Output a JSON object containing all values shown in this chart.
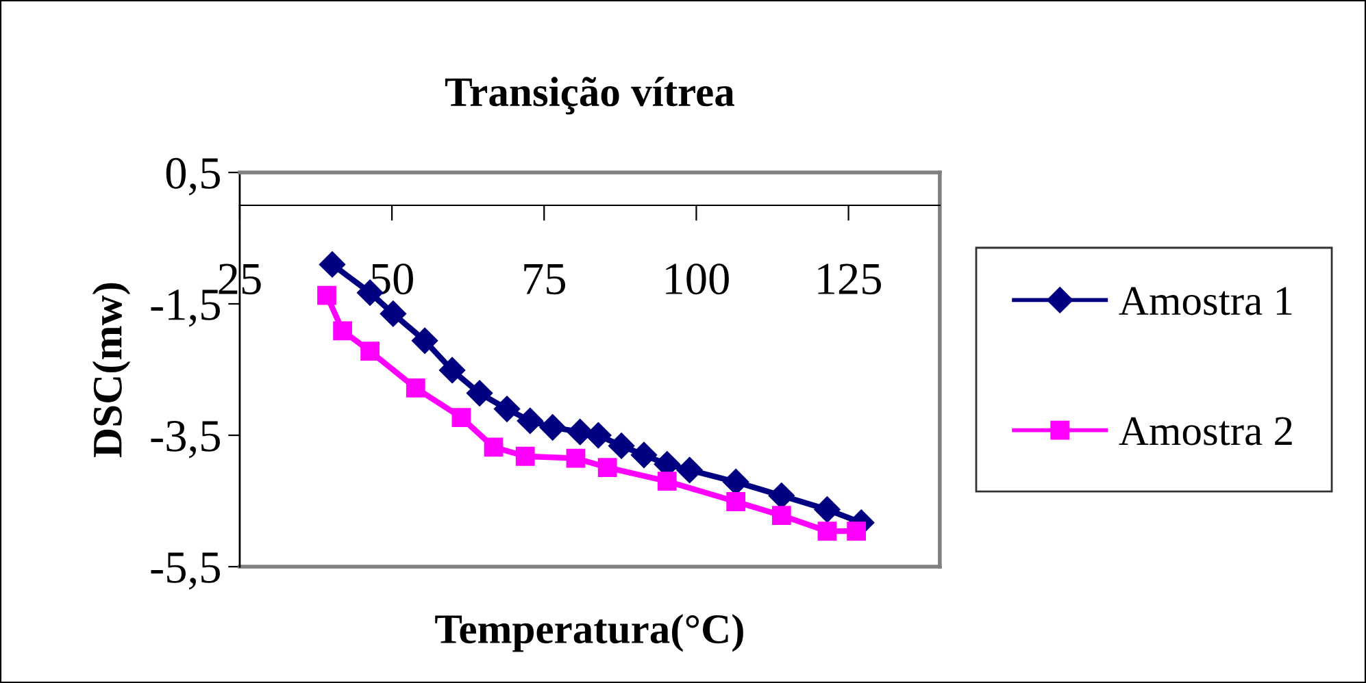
{
  "chart_data": {
    "type": "line",
    "title": "Transição vítrea",
    "xlabel": "Temperatura(°C)",
    "ylabel": "DSC(mw)",
    "xlim": [
      25,
      140
    ],
    "xticks": [
      25,
      50,
      75,
      100,
      125
    ],
    "ylim": [
      -5.5,
      0.5
    ],
    "yticks": [
      {
        "value": 0.5,
        "label": "0,5"
      },
      {
        "value": -1.5,
        "label": "-1,5"
      },
      {
        "value": -3.5,
        "label": "-3,5"
      },
      {
        "value": -5.5,
        "label": "-5,5"
      }
    ],
    "grid": false,
    "legend": "right",
    "line_style": "solid",
    "series": [
      {
        "name": "Amostra 1",
        "color": "#000080",
        "marker": "diamond",
        "x": [
          40.2,
          46.4,
          50.2,
          55.4,
          59.9,
          64.4,
          68.9,
          72.7,
          76.4,
          80.9,
          83.9,
          87.7,
          91.4,
          95.2,
          98.9,
          106.5,
          114.0,
          121.5,
          127.1
        ],
        "values": [
          -0.9,
          -1.33,
          -1.65,
          -2.06,
          -2.51,
          -2.86,
          -3.1,
          -3.28,
          -3.38,
          -3.45,
          -3.5,
          -3.66,
          -3.8,
          -3.94,
          -4.03,
          -4.21,
          -4.42,
          -4.63,
          -4.83
        ]
      },
      {
        "name": "Amostra 2",
        "color": "#ff00ff",
        "marker": "square",
        "x": [
          39.3,
          41.9,
          46.4,
          53.9,
          61.4,
          66.7,
          71.9,
          80.2,
          85.4,
          95.2,
          106.5,
          114.0,
          121.5,
          126.3
        ],
        "values": [
          -1.37,
          -1.91,
          -2.22,
          -2.78,
          -3.23,
          -3.68,
          -3.82,
          -3.85,
          -3.99,
          -4.2,
          -4.51,
          -4.72,
          -4.96,
          -4.96
        ]
      }
    ]
  }
}
